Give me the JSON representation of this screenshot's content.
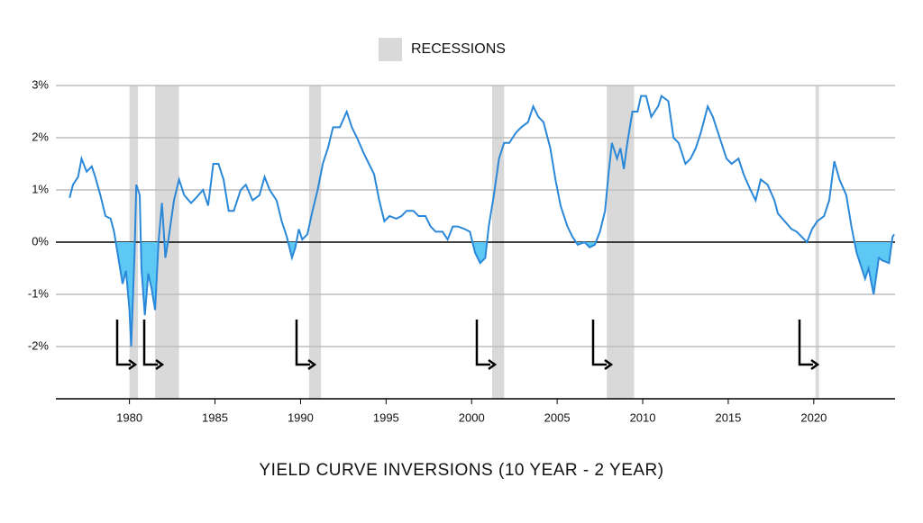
{
  "chart_data": {
    "type": "line",
    "title": "YIELD CURVE INVERSIONS (10 YEAR - 2 YEAR)",
    "color": "#2b88d8",
    "fill_color": "#5ec8f5",
    "x": [
      1976.5,
      1976.7,
      1977.0,
      1977.2,
      1977.5,
      1977.8,
      1978.0,
      1978.3,
      1978.6,
      1978.9,
      1979.1,
      1979.3,
      1979.6,
      1979.8,
      1980.0,
      1980.1,
      1980.3,
      1980.4,
      1980.6,
      1980.7,
      1980.9,
      1981.1,
      1981.3,
      1981.5,
      1981.7,
      1981.9,
      1982.1,
      1982.3,
      1982.6,
      1982.9,
      1983.2,
      1983.6,
      1983.9,
      1984.3,
      1984.6,
      1984.9,
      1985.2,
      1985.5,
      1985.8,
      1986.1,
      1986.5,
      1986.8,
      1987.2,
      1987.6,
      1987.9,
      1988.2,
      1988.6,
      1988.9,
      1989.2,
      1989.5,
      1989.7,
      1989.9,
      1990.1,
      1990.4,
      1990.7,
      1991.0,
      1991.3,
      1991.6,
      1991.9,
      1992.3,
      1992.7,
      1993.0,
      1993.3,
      1993.7,
      1994.0,
      1994.3,
      1994.6,
      1994.9,
      1995.2,
      1995.6,
      1995.9,
      1996.2,
      1996.6,
      1996.9,
      1997.3,
      1997.6,
      1997.9,
      1998.3,
      1998.6,
      1998.9,
      1999.2,
      1999.6,
      1999.9,
      2000.2,
      2000.5,
      2000.8,
      2001.0,
      2001.3,
      2001.6,
      2001.9,
      2002.2,
      2002.6,
      2002.9,
      2003.3,
      2003.6,
      2003.9,
      2004.2,
      2004.6,
      2004.9,
      2005.2,
      2005.6,
      2005.9,
      2006.2,
      2006.6,
      2006.9,
      2007.2,
      2007.5,
      2007.8,
      2008.0,
      2008.2,
      2008.5,
      2008.7,
      2008.9,
      2009.1,
      2009.4,
      2009.7,
      2009.9,
      2010.2,
      2010.5,
      2010.9,
      2011.1,
      2011.5,
      2011.8,
      2012.1,
      2012.5,
      2012.8,
      2013.1,
      2013.4,
      2013.8,
      2014.1,
      2014.5,
      2014.9,
      2015.2,
      2015.6,
      2015.9,
      2016.3,
      2016.6,
      2016.9,
      2017.3,
      2017.7,
      2017.9,
      2018.3,
      2018.7,
      2019.0,
      2019.3,
      2019.6,
      2019.9,
      2020.2,
      2020.6,
      2020.9,
      2021.2,
      2021.5,
      2021.9,
      2022.2,
      2022.5,
      2022.8,
      2023.0,
      2023.2,
      2023.5,
      2023.8,
      2024.0,
      2024.4,
      2024.6,
      2024.7
    ],
    "values": [
      0.85,
      1.1,
      1.25,
      1.6,
      1.35,
      1.45,
      1.25,
      0.9,
      0.5,
      0.45,
      0.2,
      -0.2,
      -0.8,
      -0.55,
      -1.3,
      -2.0,
      -0.2,
      1.1,
      0.9,
      -0.5,
      -1.4,
      -0.6,
      -0.9,
      -1.3,
      0.0,
      0.75,
      -0.3,
      0.1,
      0.8,
      1.2,
      0.9,
      0.75,
      0.85,
      1.0,
      0.7,
      1.5,
      1.5,
      1.2,
      0.6,
      0.6,
      1.0,
      1.1,
      0.8,
      0.9,
      1.25,
      1.0,
      0.8,
      0.4,
      0.1,
      -0.3,
      -0.1,
      0.25,
      0.05,
      0.15,
      0.6,
      1.0,
      1.5,
      1.8,
      2.2,
      2.2,
      2.5,
      2.2,
      2.0,
      1.7,
      1.5,
      1.3,
      0.8,
      0.4,
      0.5,
      0.45,
      0.5,
      0.6,
      0.6,
      0.5,
      0.5,
      0.3,
      0.2,
      0.2,
      0.05,
      0.3,
      0.3,
      0.25,
      0.2,
      -0.2,
      -0.4,
      -0.3,
      0.3,
      0.9,
      1.6,
      1.9,
      1.9,
      2.1,
      2.2,
      2.3,
      2.6,
      2.4,
      2.3,
      1.8,
      1.2,
      0.7,
      0.3,
      0.1,
      -0.05,
      0.0,
      -0.1,
      -0.05,
      0.2,
      0.6,
      1.3,
      1.9,
      1.6,
      1.8,
      1.4,
      1.9,
      2.5,
      2.5,
      2.8,
      2.8,
      2.4,
      2.6,
      2.8,
      2.7,
      2.0,
      1.9,
      1.5,
      1.6,
      1.8,
      2.1,
      2.6,
      2.4,
      2.0,
      1.6,
      1.5,
      1.6,
      1.3,
      1.0,
      0.8,
      1.2,
      1.1,
      0.8,
      0.55,
      0.4,
      0.25,
      0.2,
      0.1,
      0.0,
      0.25,
      0.4,
      0.5,
      0.8,
      1.55,
      1.2,
      0.9,
      0.3,
      -0.2,
      -0.5,
      -0.7,
      -0.5,
      -1.0,
      -0.3,
      -0.35,
      -0.4,
      0.1,
      0.15
    ],
    "recessions": {
      "name": "RECESSIONS",
      "color": "#d9d9d9",
      "periods": [
        [
          1980.0,
          1980.5
        ],
        [
          1981.5,
          1982.9
        ],
        [
          1990.5,
          1991.2
        ],
        [
          2001.2,
          2001.9
        ],
        [
          2007.9,
          2009.5
        ],
        [
          2020.1,
          2020.3
        ]
      ]
    },
    "xlim": [
      1975.7,
      2024.75
    ],
    "xticks": [
      1980,
      1985,
      1990,
      1995,
      2000,
      2005,
      2010,
      2015,
      2020
    ],
    "ylim": [
      -3,
      3
    ],
    "yticks": [
      {
        "value": 3,
        "label": "3%"
      },
      {
        "value": 2,
        "label": "2%"
      },
      {
        "value": 1,
        "label": "1%"
      },
      {
        "value": 0,
        "label": "0%"
      },
      {
        "value": -1,
        "label": "-1%"
      },
      {
        "value": -2,
        "label": "-2%"
      }
    ],
    "grid": true
  }
}
